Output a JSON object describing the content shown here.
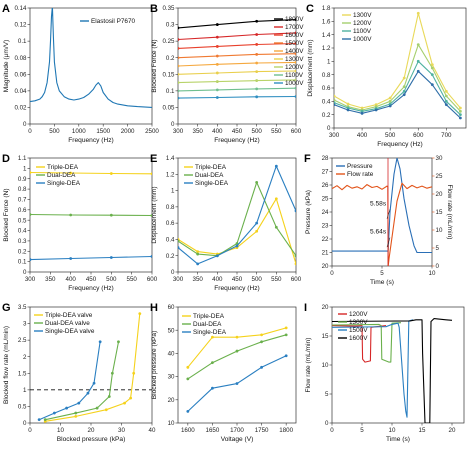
{
  "chart_data": [
    {
      "id": "A",
      "type": "line",
      "panel_label": "A",
      "xlabel": "Frequency (Hz)",
      "ylabel": "Magnitude (μm/V)",
      "xlim": [
        0,
        2500
      ],
      "ylim": [
        0,
        0.14
      ],
      "xticks": [
        0,
        500,
        1000,
        1500,
        2000,
        2500
      ],
      "yticks": [
        0,
        0.02,
        0.04,
        0.06,
        0.08,
        0.1,
        0.12,
        0.14
      ],
      "legend_position": "top-right",
      "series": [
        {
          "name": "Elastosil P7670",
          "color": "#1f77b4",
          "x": [
            0,
            100,
            200,
            250,
            300,
            350,
            400,
            420,
            440,
            460,
            480,
            500,
            550,
            600,
            700,
            800,
            900,
            1000,
            1100,
            1200,
            1300,
            1350,
            1400,
            1450,
            1500,
            1600,
            1700,
            1800,
            2000,
            2200,
            2500
          ],
          "y": [
            0.027,
            0.028,
            0.03,
            0.033,
            0.038,
            0.05,
            0.075,
            0.1,
            0.13,
            0.142,
            0.105,
            0.075,
            0.05,
            0.04,
            0.033,
            0.03,
            0.029,
            0.03,
            0.032,
            0.036,
            0.042,
            0.047,
            0.05,
            0.046,
            0.038,
            0.03,
            0.026,
            0.024,
            0.022,
            0.021,
            0.02
          ]
        }
      ]
    },
    {
      "id": "B",
      "type": "line",
      "panel_label": "B",
      "xlabel": "Frequency (Hz)",
      "ylabel": "Blocked Force (N)",
      "xlim": [
        300,
        600
      ],
      "ylim": [
        0,
        0.35
      ],
      "xticks": [
        300,
        350,
        400,
        450,
        500,
        550,
        600
      ],
      "yticks": [
        0,
        0.05,
        0.1,
        0.15,
        0.2,
        0.25,
        0.3,
        0.35
      ],
      "legend_position": "right",
      "x": [
        300,
        400,
        500,
        600
      ],
      "series": [
        {
          "name": "1800V",
          "color": "#000000",
          "values": [
            0.29,
            0.3,
            0.31,
            0.315
          ]
        },
        {
          "name": "1700V",
          "color": "#d62728",
          "values": [
            0.255,
            0.262,
            0.27,
            0.275
          ]
        },
        {
          "name": "1600V",
          "color": "#e8412c",
          "values": [
            0.228,
            0.234,
            0.24,
            0.243
          ]
        },
        {
          "name": "1500V",
          "color": "#f07a32",
          "values": [
            0.2,
            0.205,
            0.21,
            0.212
          ]
        },
        {
          "name": "1400V",
          "color": "#f5a83e",
          "values": [
            0.175,
            0.18,
            0.184,
            0.186
          ]
        },
        {
          "name": "1300V",
          "color": "#e9cf4c",
          "values": [
            0.15,
            0.154,
            0.158,
            0.16
          ]
        },
        {
          "name": "1200V",
          "color": "#b8d36a",
          "values": [
            0.125,
            0.128,
            0.131,
            0.133
          ]
        },
        {
          "name": "1100V",
          "color": "#6fbf8f",
          "values": [
            0.1,
            0.103,
            0.106,
            0.108
          ]
        },
        {
          "name": "1000V",
          "color": "#2f8ec0",
          "values": [
            0.078,
            0.08,
            0.082,
            0.083
          ]
        }
      ]
    },
    {
      "id": "C",
      "type": "line",
      "panel_label": "C",
      "xlabel": "Frequency (Hz)",
      "ylabel": "Displacement (mm)",
      "xlim": [
        300,
        770
      ],
      "ylim": [
        0,
        1.8
      ],
      "xticks": [
        300,
        400,
        500,
        600,
        700
      ],
      "yticks": [
        0,
        0.2,
        0.4,
        0.6,
        0.8,
        1,
        1.2,
        1.4,
        1.6,
        1.8
      ],
      "legend_position": "top-left",
      "x": [
        300,
        350,
        400,
        450,
        500,
        550,
        600,
        650,
        700,
        750
      ],
      "series": [
        {
          "name": "1300V",
          "color": "#e9d95a",
          "values": [
            0.48,
            0.36,
            0.3,
            0.35,
            0.45,
            0.75,
            1.72,
            0.95,
            0.55,
            0.3
          ]
        },
        {
          "name": "1200V",
          "color": "#a6cf6e",
          "values": [
            0.42,
            0.32,
            0.27,
            0.32,
            0.4,
            0.62,
            1.25,
            0.9,
            0.48,
            0.25
          ]
        },
        {
          "name": "1100V",
          "color": "#4fb2a0",
          "values": [
            0.38,
            0.3,
            0.25,
            0.29,
            0.36,
            0.55,
            1.0,
            0.8,
            0.4,
            0.2
          ]
        },
        {
          "name": "1000V",
          "color": "#2f6ea8",
          "values": [
            0.35,
            0.27,
            0.22,
            0.27,
            0.33,
            0.5,
            0.85,
            0.65,
            0.35,
            0.15
          ]
        }
      ]
    },
    {
      "id": "D",
      "type": "line",
      "panel_label": "D",
      "xlabel": "Frequency (Hz)",
      "ylabel": "Blocked Force (N)",
      "xlim": [
        300,
        600
      ],
      "ylim": [
        0,
        1.1
      ],
      "xticks": [
        300,
        350,
        400,
        450,
        500,
        550,
        600
      ],
      "yticks": [
        0,
        0.1,
        0.2,
        0.3,
        0.4,
        0.5,
        0.6,
        0.7,
        0.8,
        0.9,
        1,
        1.1
      ],
      "legend_position": "top-left",
      "x": [
        300,
        400,
        500,
        600
      ],
      "series": [
        {
          "name": "Triple-DEA",
          "color": "#f5d21c",
          "values": [
            0.96,
            0.955,
            0.95,
            0.948
          ]
        },
        {
          "name": "Dual-DEA",
          "color": "#6ab04c",
          "values": [
            0.555,
            0.55,
            0.548,
            0.545
          ]
        },
        {
          "name": "Single-DEA",
          "color": "#2a7fc1",
          "values": [
            0.12,
            0.13,
            0.14,
            0.15
          ]
        }
      ]
    },
    {
      "id": "E",
      "type": "line",
      "panel_label": "E",
      "xlabel": "Frequency (Hz)",
      "ylabel": "Displacement (mm)",
      "xlim": [
        300,
        600
      ],
      "ylim": [
        0,
        1.4
      ],
      "xticks": [
        300,
        350,
        400,
        450,
        500,
        550,
        600
      ],
      "yticks": [
        0,
        0.2,
        0.4,
        0.6,
        0.8,
        1,
        1.2,
        1.4
      ],
      "legend_position": "top-left",
      "x": [
        300,
        350,
        400,
        450,
        500,
        550,
        600
      ],
      "series": [
        {
          "name": "Triple-DEA",
          "color": "#f5d21c",
          "values": [
            0.4,
            0.25,
            0.22,
            0.3,
            0.5,
            0.9,
            0.1
          ]
        },
        {
          "name": "Dual-DEA",
          "color": "#6ab04c",
          "values": [
            0.38,
            0.22,
            0.2,
            0.35,
            1.1,
            0.55,
            0.2
          ]
        },
        {
          "name": "Single-DEA",
          "color": "#2a7fc1",
          "values": [
            0.3,
            0.1,
            0.2,
            0.32,
            0.6,
            1.3,
            0.75
          ]
        }
      ]
    },
    {
      "id": "F",
      "type": "line",
      "panel_label": "F",
      "xlabel": "Time (s)",
      "ylabel": "Pressure (kPa)",
      "ylabel_right": "Flow rate (mL/min)",
      "xlim": [
        0,
        10
      ],
      "ylim": [
        20,
        28
      ],
      "ylim_right": [
        0,
        30
      ],
      "xticks": [
        0,
        5,
        10
      ],
      "yticks": [
        20,
        21,
        22,
        23,
        24,
        25,
        26,
        27,
        28
      ],
      "yticks_right": [
        0,
        5,
        10,
        15,
        20,
        25,
        30
      ],
      "legend_position": "top-left",
      "annotations": [
        "5.58s",
        "5.64s"
      ],
      "series": [
        {
          "name": "Pressure",
          "color": "#2a6fb6",
          "axis": "left",
          "x": [
            0,
            5.55,
            5.58,
            5.62,
            5.64,
            5.8,
            6.2,
            6.5,
            6.8,
            7.2,
            7.7,
            8.2,
            8.5,
            10
          ],
          "y": [
            21.1,
            21.1,
            21.1,
            21.2,
            21.5,
            24.0,
            26.8,
            28.0,
            27.2,
            25.0,
            23.0,
            21.5,
            21.0,
            21.0
          ]
        },
        {
          "name": "Flow rate",
          "color": "#e2541a",
          "axis": "right",
          "x": [
            0,
            0.5,
            1,
            1.5,
            2,
            2.5,
            3,
            3.5,
            4,
            4.5,
            5,
            5.5,
            5.58,
            5.62,
            5.7,
            6,
            6.5,
            7,
            7.5,
            8,
            8.5,
            9,
            9.5,
            10
          ],
          "y": [
            21.5,
            22.3,
            21.2,
            22.4,
            21.6,
            22.0,
            21.4,
            22.6,
            21.8,
            22.1,
            21.3,
            22.2,
            22.0,
            0,
            2,
            8,
            18,
            23,
            21.5,
            22.4,
            21.7,
            22.2,
            21.6,
            22.0
          ]
        }
      ]
    },
    {
      "id": "G",
      "type": "line",
      "panel_label": "G",
      "xlabel": "Blocked pressure (kPa)",
      "ylabel": "Blocked flow rate (mL/min)",
      "xlim": [
        0,
        40
      ],
      "ylim": [
        0,
        3.5
      ],
      "xticks": [
        0,
        10,
        20,
        30,
        40
      ],
      "yticks": [
        0,
        0.5,
        1,
        1.5,
        2,
        2.5,
        3,
        3.5
      ],
      "reference_line": 1,
      "legend_position": "top-left",
      "series": [
        {
          "name": "Triple-DEA valve",
          "color": "#f5d21c",
          "x": [
            5,
            15,
            25,
            31,
            33,
            34,
            36
          ],
          "y": [
            0.05,
            0.2,
            0.4,
            0.6,
            0.75,
            1.5,
            3.3
          ]
        },
        {
          "name": "Dual-DEA valve",
          "color": "#6ab04c",
          "x": [
            5,
            15,
            22,
            26,
            27,
            29
          ],
          "y": [
            0.1,
            0.3,
            0.45,
            0.8,
            1.5,
            2.45
          ]
        },
        {
          "name": "Single-DEA valve",
          "color": "#2a7fc1",
          "x": [
            3,
            8,
            12,
            16,
            19,
            21,
            23
          ],
          "y": [
            0.1,
            0.3,
            0.45,
            0.6,
            0.9,
            1.2,
            2.45
          ]
        }
      ]
    },
    {
      "id": "H",
      "type": "line",
      "panel_label": "H",
      "xlabel": "Voltage (V)",
      "ylabel": "Blocked pressure (kPa)",
      "xlim": [
        1580,
        1820
      ],
      "ylim": [
        10,
        60
      ],
      "xticks": [
        1600,
        1650,
        1700,
        1750,
        1800
      ],
      "yticks": [
        10,
        20,
        30,
        40,
        50,
        60
      ],
      "legend_position": "top-left",
      "x": [
        1600,
        1650,
        1700,
        1750,
        1800
      ],
      "series": [
        {
          "name": "Triple-DEA",
          "color": "#f5d21c",
          "values": [
            34,
            47,
            47,
            48,
            51
          ]
        },
        {
          "name": "Dual-DEA",
          "color": "#6ab04c",
          "values": [
            29,
            36,
            41,
            45,
            48
          ]
        },
        {
          "name": "Single-DEA",
          "color": "#2a7fc1",
          "values": [
            15,
            25,
            27,
            34,
            39
          ]
        }
      ]
    },
    {
      "id": "I",
      "type": "line",
      "panel_label": "I",
      "xlabel": "Time (s)",
      "ylabel": "Flow rate (mL/min)",
      "xlim": [
        0,
        22
      ],
      "ylim": [
        0,
        20
      ],
      "xticks": [
        0,
        5,
        10,
        15,
        20
      ],
      "yticks": [
        0,
        5,
        10,
        15,
        20
      ],
      "legend_position": "top-left",
      "series": [
        {
          "name": "1200V",
          "color": "#d62728",
          "x": [
            0,
            4,
            5,
            5.1,
            5.5,
            6.4,
            6.5,
            9
          ],
          "y": [
            16.8,
            16.7,
            16.8,
            11,
            10.5,
            10.7,
            16.5,
            16.8
          ]
        },
        {
          "name": "1300V",
          "color": "#6ab04c",
          "x": [
            0,
            7.8,
            8.2,
            8.3,
            9.5,
            9.8,
            10,
            11.5
          ],
          "y": [
            16.9,
            17.0,
            16.8,
            11,
            10.5,
            10.5,
            17.2,
            17.3
          ]
        },
        {
          "name": "1500V",
          "color": "#2a7fc1",
          "x": [
            0,
            9,
            10,
            11,
            11.2,
            12,
            12.3,
            12.5,
            12.8,
            13.5
          ],
          "y": [
            16.5,
            16.6,
            17.0,
            17.2,
            16.5,
            5,
            2,
            1,
            17.6,
            17.8
          ]
        },
        {
          "name": "1600V",
          "color": "#000000",
          "x": [
            0,
            13,
            14,
            15,
            15.1,
            15.5,
            16.3,
            16.5,
            17,
            19,
            20
          ],
          "y": [
            17.5,
            17.6,
            17.8,
            17.8,
            12,
            0,
            0,
            17.5,
            18,
            17.8,
            17.7
          ]
        }
      ]
    }
  ]
}
